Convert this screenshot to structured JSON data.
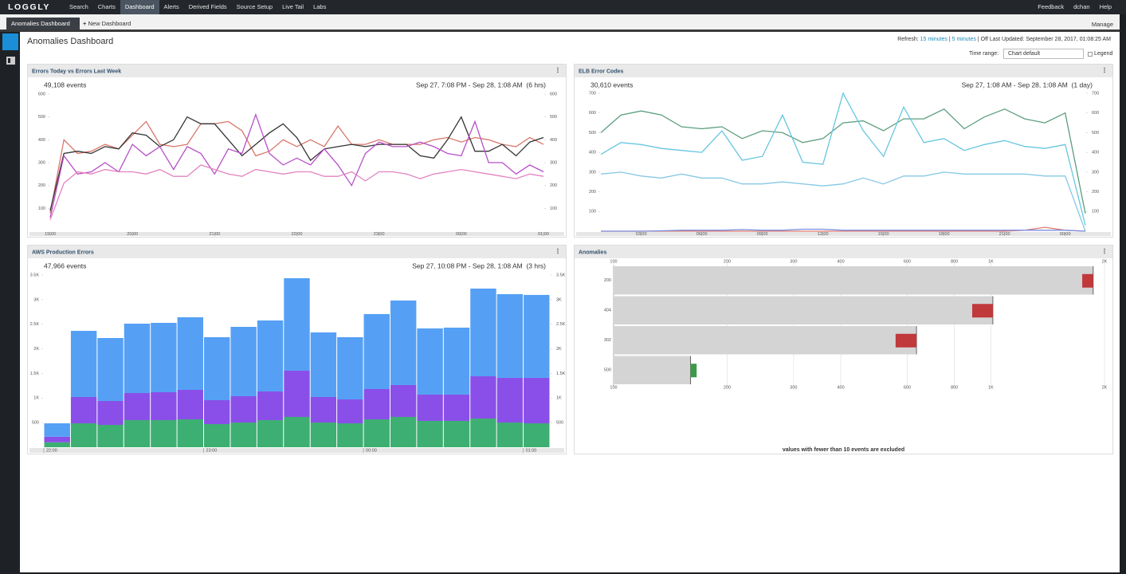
{
  "nav": {
    "logo": "LOGGLY",
    "items": [
      "Search",
      "Charts",
      "Dashboard",
      "Alerts",
      "Derived Fields",
      "Source Setup",
      "Live Tail",
      "Labs"
    ],
    "right": [
      "Feedback",
      "dchan",
      "Help"
    ]
  },
  "tabs": {
    "active": "Anomalies Dashboard",
    "new": "New Dashboard",
    "manage": "Manage"
  },
  "dashboard": {
    "title": "Anomalies Dashboard",
    "refresh_label": "Refresh:",
    "refresh_options": [
      "15 minutes",
      "5 minutes"
    ],
    "separator": "|",
    "status": "| Off Last Updated: September 28, 2017, 01:08:25 AM",
    "time_range_label": "Time range:",
    "time_range_value": "Chart default",
    "legend": "Legend"
  },
  "chart_data": [
    {
      "type": "line",
      "title": "Errors Today vs Errors Last Week",
      "subtitle": "49,108 events",
      "time_range": "Sep 27, 7:08 PM - Sep 28, 1:08 AM  (6 hrs)",
      "categories": [
        "19:00",
        null,
        null,
        null,
        null,
        null,
        "20:00",
        null,
        null,
        null,
        null,
        null,
        "21:00",
        null,
        null,
        null,
        null,
        null,
        "22:00",
        null,
        null,
        null,
        null,
        null,
        "23:00",
        null,
        null,
        null,
        null,
        null,
        "00:00",
        null,
        null,
        null,
        null,
        null,
        "01:00"
      ],
      "series": [
        {
          "color": "#d9776b",
          "values": [
            80,
            400,
            340,
            350,
            380,
            360,
            420,
            480,
            380,
            370,
            380,
            470,
            470,
            480,
            440,
            330,
            350,
            400,
            370,
            400,
            370,
            460,
            380,
            380,
            400,
            380,
            380,
            380,
            400,
            410,
            390,
            410,
            400,
            380,
            370,
            410,
            380
          ]
        },
        {
          "color": "#333333",
          "values": [
            90,
            340,
            350,
            340,
            370,
            360,
            430,
            420,
            370,
            400,
            500,
            470,
            470,
            400,
            330,
            380,
            430,
            470,
            410,
            310,
            360,
            370,
            380,
            370,
            380,
            380,
            380,
            330,
            320,
            400,
            500,
            350,
            350,
            380,
            330,
            390,
            410
          ]
        },
        {
          "color": "#b84fc9",
          "values": [
            60,
            330,
            250,
            260,
            300,
            260,
            380,
            330,
            370,
            270,
            370,
            340,
            250,
            360,
            340,
            510,
            340,
            290,
            320,
            290,
            360,
            290,
            200,
            340,
            390,
            370,
            370,
            390,
            370,
            340,
            330,
            480,
            300,
            300,
            250,
            290,
            260
          ]
        },
        {
          "color": "#e383c0",
          "values": [
            50,
            210,
            260,
            250,
            270,
            260,
            260,
            250,
            270,
            240,
            240,
            290,
            270,
            250,
            240,
            270,
            260,
            250,
            260,
            260,
            240,
            240,
            260,
            220,
            260,
            260,
            250,
            230,
            250,
            260,
            270,
            260,
            250,
            240,
            230,
            250,
            240
          ]
        }
      ],
      "ylim": [
        0,
        600
      ],
      "yticks": [
        100,
        200,
        300,
        400,
        500,
        600
      ],
      "y2lim": [
        0,
        600
      ],
      "y2ticks": [
        100,
        200,
        300,
        400,
        500,
        600
      ],
      "grid": false
    },
    {
      "type": "line",
      "title": "ELB Error Codes",
      "subtitle": "30,610 events",
      "time_range": "Sep 27, 1:08 AM - Sep 28, 1:08 AM  (1 day)",
      "categories": [
        null,
        null,
        "03:00",
        null,
        null,
        "06:00",
        null,
        null,
        "09:00",
        null,
        null,
        "12:00",
        null,
        null,
        "15:00",
        null,
        null,
        "18:00",
        null,
        null,
        "21:00",
        null,
        null,
        "00:00",
        null
      ],
      "series": [
        {
          "color": "#5c9e7e",
          "values": [
            500,
            590,
            610,
            590,
            530,
            520,
            530,
            470,
            510,
            500,
            450,
            470,
            550,
            560,
            510,
            570,
            570,
            620,
            520,
            580,
            620,
            570,
            550,
            600,
            90
          ]
        },
        {
          "color": "#66c6e0",
          "values": [
            390,
            450,
            440,
            420,
            410,
            400,
            510,
            360,
            380,
            590,
            350,
            340,
            700,
            510,
            380,
            630,
            450,
            470,
            410,
            440,
            460,
            430,
            420,
            440,
            30
          ]
        },
        {
          "color": "#86c8e4",
          "values": [
            290,
            300,
            280,
            270,
            290,
            270,
            270,
            240,
            240,
            250,
            240,
            230,
            240,
            270,
            240,
            280,
            280,
            300,
            290,
            290,
            290,
            290,
            280,
            280,
            0
          ]
        },
        {
          "color": "#e07a6e",
          "values": [
            0,
            0,
            0,
            0,
            0,
            0,
            0,
            0,
            0,
            0,
            0,
            0,
            0,
            0,
            0,
            0,
            0,
            0,
            0,
            0,
            0,
            5,
            20,
            5,
            0
          ]
        },
        {
          "color": "#7b8fe0",
          "values": [
            0,
            0,
            0,
            2,
            5,
            5,
            5,
            8,
            5,
            5,
            10,
            10,
            5,
            5,
            5,
            5,
            5,
            5,
            5,
            5,
            5,
            5,
            5,
            5,
            0
          ]
        }
      ],
      "ylim": [
        0,
        700
      ],
      "yticks": [
        100,
        200,
        300,
        400,
        500,
        600,
        700
      ],
      "y2lim": [
        0,
        700
      ],
      "y2ticks": [
        100,
        200,
        300,
        400,
        500,
        600,
        700
      ],
      "grid": false
    },
    {
      "type": "bar",
      "stacked": true,
      "title": "AWS Production Errors",
      "subtitle": "47,966 events",
      "time_range": "Sep 27, 10:08 PM - Sep 28, 1:08 AM  (3 hrs)",
      "categories": [
        "22:00",
        null,
        null,
        null,
        null,
        null,
        "23:00",
        null,
        null,
        null,
        null,
        null,
        "00:00",
        null,
        null,
        null,
        null,
        null,
        "01:00"
      ],
      "series": [
        {
          "color": "#3daf72",
          "values": [
            100,
            486,
            454,
            551,
            551,
            567,
            470,
            502,
            551,
            616,
            502,
            486,
            567,
            616,
            535,
            535,
            583,
            502,
            486
          ]
        },
        {
          "color": "#8a4fe8",
          "values": [
            113,
            535,
            486,
            551,
            567,
            600,
            486,
            535,
            583,
            940,
            519,
            486,
            616,
            648,
            535,
            535,
            859,
            908,
            924
          ]
        },
        {
          "color": "#55a0f5",
          "values": [
            273,
            1345,
            1280,
            1410,
            1410,
            1475,
            1281,
            1410,
            1443,
            1880,
            1313,
            1265,
            1524,
            1718,
            1345,
            1361,
            1783,
            1702,
            1686
          ]
        }
      ],
      "ylim": [
        0,
        3500
      ],
      "yticks": [
        500,
        {
          "value": 1000,
          "label": "1K"
        },
        {
          "value": 1500,
          "label": "1.5K"
        },
        {
          "value": 2000,
          "label": "2K"
        },
        {
          "value": 2500,
          "label": "2.5K"
        },
        {
          "value": 3000,
          "label": "3K"
        },
        {
          "value": 3500,
          "label": "3.5K"
        }
      ],
      "y2lim": [
        0,
        3500
      ],
      "y2ticks": [
        500,
        {
          "value": 1000,
          "label": "1K"
        },
        {
          "value": 1500,
          "label": "1.5K"
        },
        {
          "value": 2000,
          "label": "2K"
        },
        {
          "value": 2500,
          "label": "2.5K"
        },
        {
          "value": 3000,
          "label": "3K"
        },
        {
          "value": 3500,
          "label": "3.5K"
        }
      ],
      "grid": false
    },
    {
      "type": "bar",
      "orientation": "horizontal",
      "log_x": true,
      "title": "Anomalies",
      "note": "values with fewer than 10 events are excluded",
      "categories": [
        "200",
        "404",
        "302",
        "500"
      ],
      "series": [
        {
          "color": "#d4d4d4",
          "values": [
            1867,
            1012,
            635,
            160
          ]
        },
        {
          "colors": [
            "#c0393b",
            "#c0393b",
            "#c0393b",
            "#3a9a48"
          ],
          "values": [
            1746,
            892,
            559,
            166
          ]
        }
      ],
      "xlim": [
        100,
        2000
      ],
      "xticks": [
        100,
        200,
        300,
        400,
        600,
        800,
        {
          "value": 1000,
          "label": "1K"
        },
        {
          "value": 2000,
          "label": "2K"
        }
      ],
      "grid": true
    }
  ]
}
